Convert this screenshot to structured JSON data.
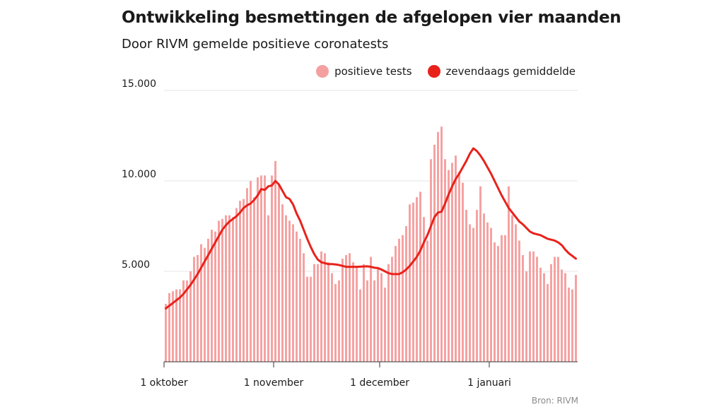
{
  "header": {
    "title": "Ontwikkeling besmettingen de afgelopen vier maanden",
    "subtitle": "Door RIVM gemelde positieve coronatests"
  },
  "source": "Bron: RIVM",
  "colors": {
    "bars": "#f5a0a0",
    "line": "#e8221b",
    "grid": "#e6e6e6",
    "axis": "#333333"
  },
  "chart_data": {
    "type": "bar",
    "title": "Ontwikkeling besmettingen de afgelopen vier maanden",
    "subtitle": "Door RIVM gemelde positieve coronatests",
    "xlabel": "",
    "ylabel": "",
    "ylim": [
      0,
      15000
    ],
    "yticks": [
      5000,
      10000,
      15000
    ],
    "ytick_labels": [
      "5.000",
      "10.000",
      "15.000"
    ],
    "x_start": "2020-10-01",
    "xticks": [
      {
        "date": "2020-10-01",
        "label": "1 oktober"
      },
      {
        "date": "2020-11-01",
        "label": "1 november"
      },
      {
        "date": "2020-12-01",
        "label": "1 december"
      },
      {
        "date": "2021-01-01",
        "label": "1 januari"
      }
    ],
    "grid": true,
    "legend_position": "top-right",
    "series": [
      {
        "name": "positieve tests",
        "type": "bar",
        "values": [
          3200,
          3800,
          3900,
          4000,
          4000,
          4500,
          4500,
          5000,
          5800,
          5900,
          6500,
          6300,
          6800,
          7300,
          7200,
          7800,
          7900,
          8100,
          8100,
          8000,
          8500,
          8900,
          9000,
          9600,
          10000,
          9100,
          10200,
          10300,
          10300,
          8100,
          10300,
          11100,
          9800,
          8700,
          8100,
          7800,
          7600,
          7200,
          6800,
          6000,
          4700,
          4700,
          5400,
          5400,
          6100,
          6000,
          5500,
          4900,
          4300,
          4500,
          5700,
          5900,
          6000,
          5500,
          5300,
          4000,
          5400,
          4500,
          5800,
          4500,
          5200,
          4900,
          4100,
          5400,
          5800,
          6400,
          6800,
          7000,
          7500,
          8700,
          8800,
          9100,
          9400,
          8000,
          6700,
          11200,
          12000,
          12700,
          13000,
          11200,
          10600,
          11000,
          11400,
          10500,
          9900,
          8400,
          7600,
          7400,
          8400,
          9700,
          8200,
          7700,
          7400,
          6600,
          6400,
          7000,
          7000,
          9700,
          8100,
          7600,
          6700,
          5900,
          5000,
          6100,
          6100,
          5800,
          5200,
          4900,
          4300,
          5400,
          5800,
          5800,
          5100,
          4900,
          4100,
          4000,
          4800
        ]
      },
      {
        "name": "zevendaags gemiddelde",
        "type": "line",
        "values": [
          2950,
          3100,
          3250,
          3400,
          3550,
          3750,
          4000,
          4250,
          4550,
          4850,
          5200,
          5550,
          5900,
          6250,
          6600,
          6950,
          7300,
          7550,
          7750,
          7900,
          8050,
          8250,
          8500,
          8650,
          8750,
          8950,
          9200,
          9550,
          9500,
          9700,
          9750,
          10000,
          9800,
          9450,
          9100,
          9000,
          8700,
          8200,
          7800,
          7300,
          6800,
          6350,
          5950,
          5650,
          5500,
          5450,
          5400,
          5400,
          5380,
          5350,
          5300,
          5250,
          5250,
          5250,
          5250,
          5260,
          5270,
          5280,
          5250,
          5200,
          5180,
          5100,
          5000,
          4900,
          4850,
          4850,
          4850,
          4950,
          5100,
          5300,
          5550,
          5800,
          6150,
          6600,
          7000,
          7500,
          8000,
          8250,
          8300,
          8750,
          9250,
          9700,
          10100,
          10400,
          10750,
          11100,
          11500,
          11800,
          11650,
          11400,
          11100,
          10750,
          10400,
          10000,
          9600,
          9200,
          8850,
          8500,
          8250,
          8000,
          7750,
          7600,
          7400,
          7200,
          7100,
          7050,
          7000,
          6900,
          6800,
          6750,
          6700,
          6600,
          6450,
          6200,
          6000,
          5850,
          5700
        ]
      }
    ]
  }
}
